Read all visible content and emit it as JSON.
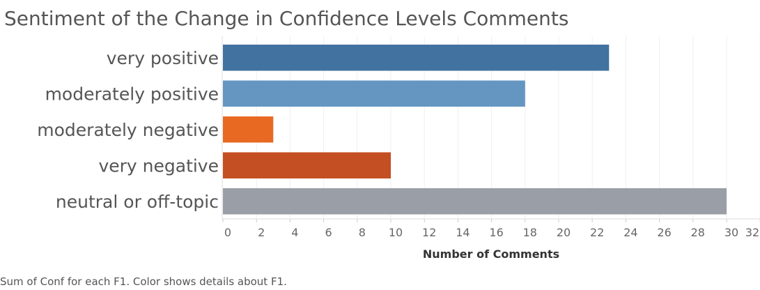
{
  "chart_data": {
    "type": "bar",
    "orientation": "horizontal",
    "title": "Sentiment of the Change in Confidence Levels Comments",
    "categories": [
      "very positive",
      "moderately positive",
      "moderately negative",
      "very negative",
      "neutral or off-topic"
    ],
    "values": [
      23,
      18,
      3,
      10,
      30
    ],
    "colors": [
      "#4272a0",
      "#6596c2",
      "#e86a22",
      "#c44f23",
      "#9a9ea6"
    ],
    "xlabel": "Number of Comments",
    "xlim": [
      0,
      32
    ],
    "xticks": [
      0,
      2,
      4,
      6,
      8,
      10,
      12,
      14,
      16,
      18,
      20,
      22,
      24,
      26,
      28,
      30,
      32
    ],
    "grid": true
  },
  "footnote": "Sum of Conf for each F1.  Color shows details about F1."
}
